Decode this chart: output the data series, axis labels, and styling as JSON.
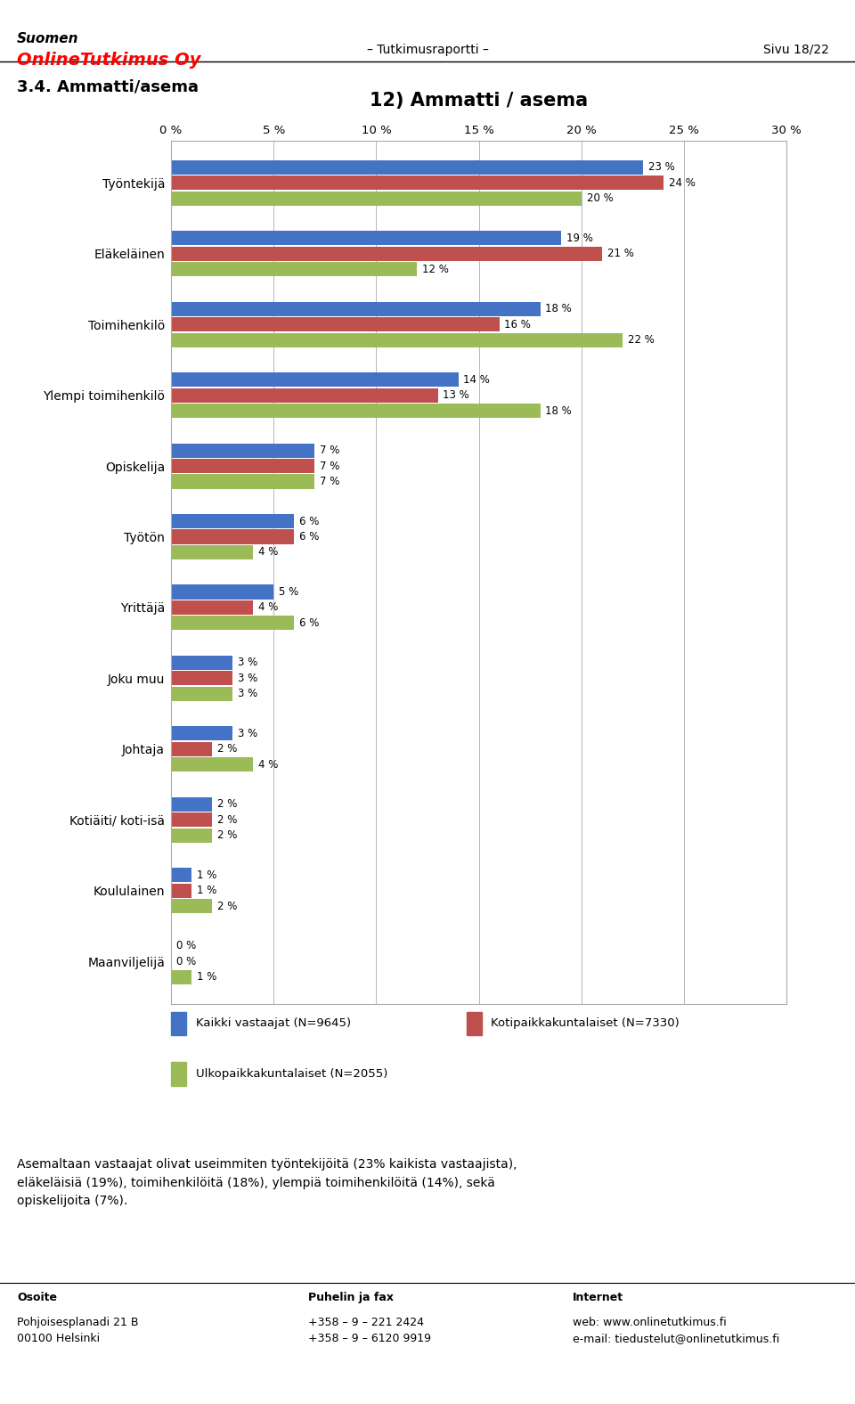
{
  "title": "12) Ammatti / asema",
  "header_title": "Suomen",
  "header_company": "OnlineTutkimus Oy",
  "header_center": "– Tutkimusraportti –",
  "header_right": "Sivu 18/22",
  "section_title": "3.4. Ammatti/asema",
  "categories": [
    "Työntekijä",
    "Eläkeläinen",
    "Toimihenkilö",
    "Ylempi toimihenkilö",
    "Opiskelija",
    "Työtön",
    "Yrittäjä",
    "Joku muu",
    "Johtaja",
    "Kotiäiti/ koti-isä",
    "Koululainen",
    "Maanviljelijä"
  ],
  "series": {
    "Kaikki vastaajat (N=9645)": [
      23,
      19,
      18,
      14,
      7,
      6,
      5,
      3,
      3,
      2,
      1,
      0
    ],
    "Kotipaikkakuntalaiset (N=7330)": [
      24,
      21,
      16,
      13,
      7,
      6,
      4,
      3,
      2,
      2,
      1,
      0
    ],
    "Ulkopaikkakuntalaiset (N=2055)": [
      20,
      12,
      22,
      18,
      7,
      4,
      6,
      3,
      4,
      2,
      2,
      1
    ]
  },
  "colors": {
    "Kaikki vastaajat (N=9645)": "#4472C4",
    "Kotipaikkakuntalaiset (N=7330)": "#C0504D",
    "Ulkopaikkakuntalaiset (N=2055)": "#9BBB59"
  },
  "xlim": [
    0,
    30
  ],
  "xticks": [
    0,
    5,
    10,
    15,
    20,
    25,
    30
  ],
  "xtick_labels": [
    "0 %",
    "5 %",
    "10 %",
    "15 %",
    "20 %",
    "25 %",
    "30 %"
  ],
  "footer_text": "Asemaltaan vastaajat olivat useimmiten työntekijöitä (23% kaikista vastaajista),\neläkeläisiä (19%), toimihenkilöitä (18%), ylempiä toimihenkilöitä (14%), sekä\nopiskelijoita (7%).",
  "address_label": "Osoite",
  "address": "Pohjoisesplanadi 21 B\n00100 Helsinki",
  "phone_label": "Puhelin ja fax",
  "phone": "+358 – 9 – 221 2424\n+358 – 9 – 6120 9919",
  "internet_label": "Internet",
  "internet": "web: www.onlinetutkimus.fi\ne-mail: tiedustelut@onlinetutkimus.fi"
}
